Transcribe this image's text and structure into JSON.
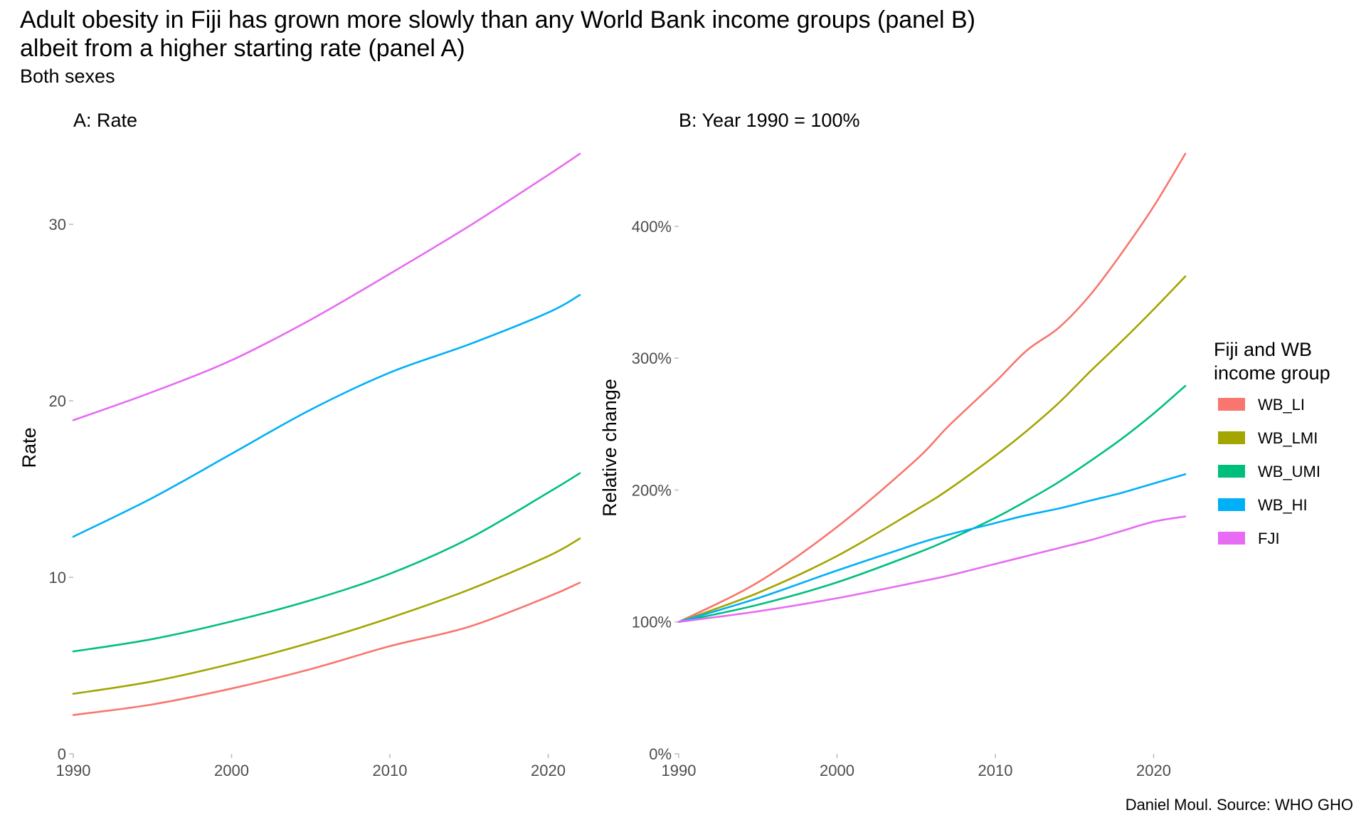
{
  "title_line1": "Adult obesity in Fiji has grown more slowly than any World Bank income groups (panel B)",
  "title_line2": "albeit from a higher starting rate (panel A)",
  "subtitle": "Both sexes",
  "caption": "Daniel Moul. Source: WHO GHO",
  "legend": {
    "title_line1": "Fiji and WB",
    "title_line2": "income group"
  },
  "chart_data": [
    {
      "type": "line",
      "title": "A: Rate",
      "xlabel": "",
      "ylabel": "Rate",
      "xlim": [
        1990,
        2022
      ],
      "ylim": [
        0,
        34
      ],
      "x_ticks": [
        "1990",
        "2000",
        "2010",
        "2020"
      ],
      "y_ticks": [
        "0",
        "10",
        "20",
        "30"
      ],
      "x": [
        1990,
        1995,
        2000,
        2005,
        2010,
        2015,
        2020,
        2022
      ],
      "series": [
        {
          "name": "WB_LI",
          "color": "#F8766D",
          "values": [
            2.2,
            2.8,
            3.7,
            4.8,
            6.1,
            7.2,
            8.9,
            9.7
          ]
        },
        {
          "name": "WB_LMI",
          "color": "#A3A500",
          "values": [
            3.4,
            4.1,
            5.1,
            6.3,
            7.7,
            9.3,
            11.2,
            12.2
          ]
        },
        {
          "name": "WB_UMI",
          "color": "#00BF7D",
          "values": [
            5.8,
            6.5,
            7.5,
            8.7,
            10.2,
            12.2,
            14.8,
            15.9
          ]
        },
        {
          "name": "WB_HI",
          "color": "#00B0F6",
          "values": [
            12.3,
            14.5,
            17.0,
            19.5,
            21.6,
            23.2,
            25.0,
            26.0
          ]
        },
        {
          "name": "FJI",
          "color": "#E76BF3",
          "values": [
            18.9,
            20.5,
            22.3,
            24.6,
            27.2,
            29.9,
            32.8,
            34.0
          ]
        }
      ]
    },
    {
      "type": "line",
      "title": "B: Year 1990 = 100%",
      "xlabel": "",
      "ylabel": "Relative change",
      "xlim": [
        1990,
        2022
      ],
      "ylim": [
        0,
        4.55
      ],
      "x_ticks": [
        "1990",
        "2000",
        "2010",
        "2020"
      ],
      "y_ticks": [
        "0%",
        "100%",
        "200%",
        "300%",
        "400%"
      ],
      "x": [
        1990,
        1995,
        2000,
        2005,
        2007,
        2010,
        2012,
        2014,
        2016,
        2018,
        2020,
        2022
      ],
      "series": [
        {
          "name": "WB_LI",
          "color": "#F8766D",
          "values": [
            1.0,
            1.3,
            1.72,
            2.23,
            2.48,
            2.82,
            3.06,
            3.23,
            3.48,
            3.8,
            4.15,
            4.55
          ]
        },
        {
          "name": "WB_LMI",
          "color": "#A3A500",
          "values": [
            1.0,
            1.22,
            1.5,
            1.85,
            2.0,
            2.26,
            2.45,
            2.66,
            2.9,
            3.13,
            3.37,
            3.62
          ]
        },
        {
          "name": "WB_UMI",
          "color": "#00BF7D",
          "values": [
            1.0,
            1.13,
            1.3,
            1.52,
            1.62,
            1.79,
            1.92,
            2.06,
            2.22,
            2.39,
            2.58,
            2.79
          ]
        },
        {
          "name": "WB_HI",
          "color": "#00B0F6",
          "values": [
            1.0,
            1.18,
            1.39,
            1.59,
            1.66,
            1.75,
            1.81,
            1.86,
            1.92,
            1.98,
            2.05,
            2.12
          ]
        },
        {
          "name": "FJI",
          "color": "#E76BF3",
          "values": [
            1.0,
            1.08,
            1.18,
            1.3,
            1.35,
            1.44,
            1.5,
            1.56,
            1.62,
            1.69,
            1.76,
            1.8
          ]
        }
      ]
    }
  ]
}
